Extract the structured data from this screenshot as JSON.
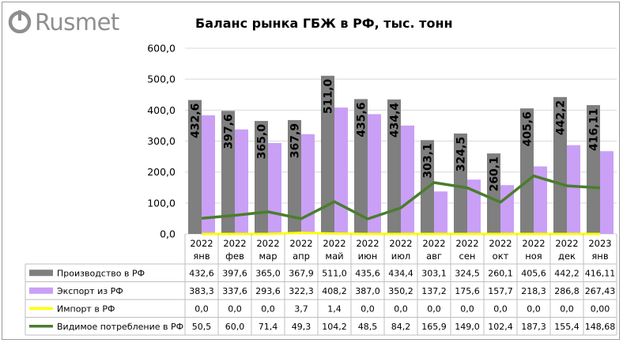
{
  "logo": {
    "text": "Rusmet"
  },
  "colors": {
    "production": "#7f7f7f",
    "export": "#c9a0f5",
    "import": "#ffff00",
    "consumption": "#4b7d2d",
    "grid": "#d9d9d9"
  },
  "chart_data": {
    "type": "bar",
    "title": "Баланс рынка ГБЖ в РФ, тыс. тонн",
    "ylim": [
      0,
      600
    ],
    "yticks": [
      "0,0",
      "100,0",
      "200,0",
      "300,0",
      "400,0",
      "500,0",
      "600,0"
    ],
    "categories": [
      {
        "year": "2022",
        "month": "янв"
      },
      {
        "year": "2022",
        "month": "фев"
      },
      {
        "year": "2022",
        "month": "мар"
      },
      {
        "year": "2022",
        "month": "апр"
      },
      {
        "year": "2022",
        "month": "май"
      },
      {
        "year": "2022",
        "month": "июн"
      },
      {
        "year": "2022",
        "month": "июл"
      },
      {
        "year": "2022",
        "month": "авг"
      },
      {
        "year": "2022",
        "month": "сен"
      },
      {
        "year": "2022",
        "month": "окт"
      },
      {
        "year": "2022",
        "month": "ноя"
      },
      {
        "year": "2022",
        "month": "дек"
      },
      {
        "year": "2023",
        "month": "янв"
      }
    ],
    "series": [
      {
        "name": "Производство в РФ",
        "kind": "bar",
        "values": [
          432.6,
          397.6,
          365.0,
          367.9,
          511.0,
          435.6,
          434.4,
          303.1,
          324.5,
          260.1,
          405.6,
          442.2,
          416.11
        ],
        "labels": [
          "432,6",
          "397,6",
          "365,0",
          "367,9",
          "511,0",
          "435,6",
          "434,4",
          "303,1",
          "324,5",
          "260,1",
          "405,6",
          "442,2",
          "416,11"
        ]
      },
      {
        "name": "Экспорт из РФ",
        "kind": "bar",
        "values": [
          383.3,
          337.6,
          293.6,
          322.3,
          408.2,
          387.0,
          350.2,
          137.2,
          175.6,
          157.7,
          218.3,
          286.8,
          267.43
        ],
        "labels": [
          "383,3",
          "337,6",
          "293,6",
          "322,3",
          "408,2",
          "387,0",
          "350,2",
          "137,2",
          "175,6",
          "157,7",
          "218,3",
          "286,8",
          "267,43"
        ]
      },
      {
        "name": "Импорт в РФ",
        "kind": "line",
        "values": [
          0.0,
          0.0,
          0.0,
          3.7,
          1.4,
          0.0,
          0.0,
          0.0,
          0.0,
          0.0,
          0.0,
          0.0,
          0.0
        ],
        "labels": [
          "0,0",
          "0,0",
          "0,0",
          "3,7",
          "1,4",
          "0,0",
          "0,0",
          "0,0",
          "0,0",
          "0,0",
          "0,0",
          "0,0",
          "0,00"
        ]
      },
      {
        "name": "Видимое потребление в РФ",
        "kind": "line",
        "values": [
          50.5,
          60.0,
          71.4,
          49.3,
          104.2,
          48.5,
          84.2,
          165.9,
          149.0,
          102.4,
          187.3,
          155.4,
          148.68
        ],
        "labels": [
          "50,5",
          "60,0",
          "71,4",
          "49,3",
          "104,2",
          "48,5",
          "84,2",
          "165,9",
          "149,0",
          "102,4",
          "187,3",
          "155,4",
          "148,68"
        ]
      }
    ],
    "bar_data_labels_series": "Производство в РФ",
    "grid": true,
    "legend": "data-table"
  }
}
